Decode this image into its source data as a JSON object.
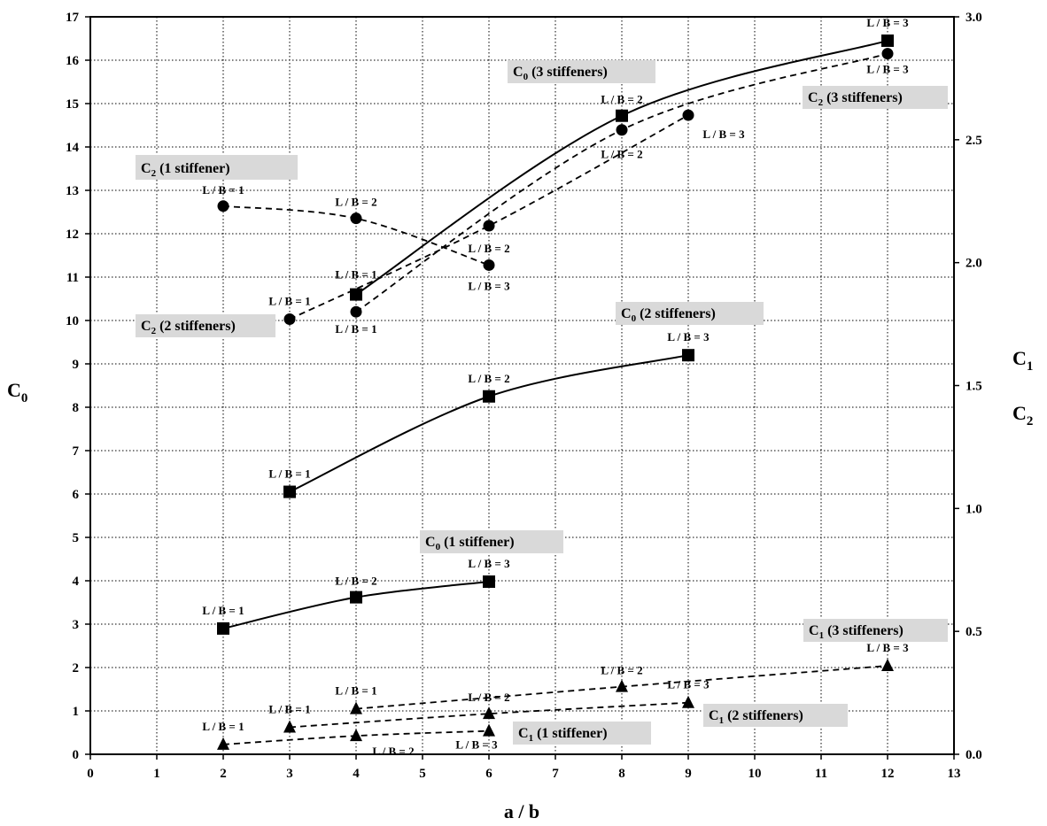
{
  "chart_data": {
    "type": "line",
    "xlabel": "a / b",
    "ylabel": "C0",
    "ylabel_base": "C",
    "ylabel_sub": "0",
    "y2label_lines": [
      {
        "base": "C",
        "sub": "1"
      },
      {
        "base": "C",
        "sub": "2"
      }
    ],
    "xlim": [
      0,
      13
    ],
    "ylim": [
      0,
      17
    ],
    "y2lim": [
      0,
      3
    ],
    "grid": true,
    "x_ticks": [
      "0",
      "1",
      "2",
      "3",
      "4",
      "5",
      "6",
      "7",
      "8",
      "9",
      "10",
      "11",
      "12",
      "13"
    ],
    "y_ticks": [
      "0",
      "1",
      "2",
      "3",
      "4",
      "5",
      "6",
      "7",
      "8",
      "9",
      "10",
      "11",
      "12",
      "13",
      "14",
      "15",
      "16",
      "17"
    ],
    "y2_ticks": [
      "0.0",
      "0.5",
      "1.0",
      "1.5",
      "2.0",
      "2.5",
      "3.0"
    ],
    "series": [
      {
        "name": "C0 (1 stiffener)",
        "label_base": "C",
        "label_sub": "0",
        "label_rest": " (1 stiffener)",
        "axis": "left",
        "marker": "square",
        "line": "solid",
        "x": [
          2,
          4,
          6
        ],
        "y": [
          2.9,
          3.62,
          3.98
        ],
        "point_labels": [
          "L / B = 1",
          "L / B = 2",
          "L / B = 3"
        ]
      },
      {
        "name": "C0 (2 stiffeners)",
        "label_base": "C",
        "label_sub": "0",
        "label_rest": " (2 stiffeners)",
        "axis": "left",
        "marker": "square",
        "line": "solid",
        "x": [
          3,
          6,
          9
        ],
        "y": [
          6.05,
          8.25,
          9.2
        ],
        "point_labels": [
          "L / B = 1",
          "L / B = 2",
          "L / B = 3"
        ]
      },
      {
        "name": "C0 (3 stiffeners)",
        "label_base": "C",
        "label_sub": "0",
        "label_rest": " (3 stiffeners)",
        "axis": "left",
        "marker": "square",
        "line": "solid",
        "x": [
          4,
          8,
          12
        ],
        "y": [
          10.6,
          14.72,
          16.45
        ],
        "point_labels": [
          "L / B = 1",
          "L / B = 2",
          "L / B = 3"
        ]
      },
      {
        "name": "C1 (1 stiffener)",
        "label_base": "C",
        "label_sub": "1",
        "label_rest": " (1 stiffener)",
        "axis": "right",
        "marker": "triangle",
        "line": "dashed",
        "x": [
          2,
          4,
          6
        ],
        "y": [
          0.04,
          0.075,
          0.095
        ],
        "point_labels": [
          "L / B = 1",
          "L / B = 2",
          "L / B = 3"
        ]
      },
      {
        "name": "C1 (2 stiffeners)",
        "label_base": "C",
        "label_sub": "1",
        "label_rest": " (2 stiffeners)",
        "axis": "right",
        "marker": "triangle",
        "line": "dashed",
        "x": [
          3,
          6,
          9
        ],
        "y": [
          0.11,
          0.165,
          0.21
        ],
        "point_labels": [
          "L / B = 1",
          "L / B = 2",
          "L / B = 3"
        ]
      },
      {
        "name": "C1 (3 stiffeners)",
        "label_base": "C",
        "label_sub": "1",
        "label_rest": " (3 stiffeners)",
        "axis": "right",
        "marker": "triangle",
        "line": "dashed",
        "x": [
          4,
          8,
          12
        ],
        "y": [
          0.185,
          0.275,
          0.36
        ],
        "point_labels": [
          "L / B = 1",
          "L / B = 2",
          "L / B = 3"
        ]
      },
      {
        "name": "C2 (1 stiffener)",
        "label_base": "C",
        "label_sub": "2",
        "label_rest": " (1 stiffener)",
        "axis": "right",
        "marker": "circle",
        "line": "dashed",
        "x": [
          2,
          4,
          6
        ],
        "y": [
          2.23,
          2.18,
          1.99
        ],
        "point_labels": [
          "L / B = 1",
          "L / B = 2",
          "L / B = 3"
        ]
      },
      {
        "name": "C2 (2 stiffeners)",
        "label_base": "C",
        "label_sub": "2",
        "label_rest": " (2 stiffeners)",
        "axis": "right",
        "marker": "circle",
        "line": "dashed",
        "x": [
          3,
          6,
          9
        ],
        "y": [
          1.77,
          2.15,
          2.6
        ],
        "point_labels": [
          "L / B = 1",
          "L / B = 2",
          "L / B = 3"
        ]
      },
      {
        "name": "C2 (3 stiffeners)",
        "label_base": "C",
        "label_sub": "2",
        "label_rest": " (3 stiffeners)",
        "axis": "right",
        "marker": "circle",
        "line": "dashed",
        "x": [
          4,
          8,
          12
        ],
        "y": [
          1.8,
          2.54,
          2.85
        ],
        "point_labels": [
          "L / B = 1",
          "L / B = 2",
          "L / B = 3"
        ]
      }
    ]
  }
}
